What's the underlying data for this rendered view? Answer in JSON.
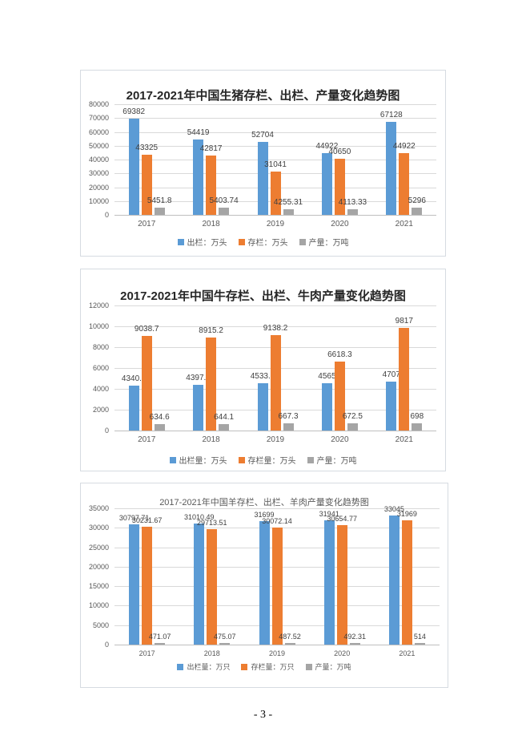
{
  "page": {
    "number_label": "- 3 -"
  },
  "chart_data": [
    {
      "type": "bar",
      "title": "2017-2021年中国生猪存栏、出栏、产量变化趋势图",
      "categories": [
        "2017",
        "2018",
        "2019",
        "2020",
        "2021"
      ],
      "series": [
        {
          "name": "出栏：万头",
          "color": "#5B9BD5",
          "values": [
            69382,
            54419,
            52704,
            44922,
            67128
          ]
        },
        {
          "name": "存栏：万头",
          "color": "#ED7D31",
          "values": [
            43325,
            42817,
            31041,
            40650,
            44922
          ]
        },
        {
          "name": "产量：万吨",
          "color": "#A5A5A5",
          "values": [
            5451.8,
            5403.74,
            4255.31,
            4113.33,
            5296
          ]
        }
      ],
      "ylim": [
        0,
        80000
      ],
      "ytick_step": 10000,
      "yticks": [
        "0",
        "10000",
        "20000",
        "30000",
        "40000",
        "50000",
        "60000",
        "70000",
        "80000"
      ],
      "grid": true,
      "legend_position": "bottom",
      "data_labels": true
    },
    {
      "type": "bar",
      "title": "2017-2021年中国牛存栏、出栏、牛肉产量变化趋势图",
      "categories": [
        "2017",
        "2018",
        "2019",
        "2020",
        "2021"
      ],
      "series": [
        {
          "name": "出栏量：万头",
          "color": "#5B9BD5",
          "values": [
            4340.3,
            4397.5,
            4533.9,
            4565,
            4707
          ]
        },
        {
          "name": "存栏量：万头",
          "color": "#ED7D31",
          "values": [
            9038.7,
            8915.2,
            9138.2,
            6618.3,
            9817
          ]
        },
        {
          "name": "产量：万吨",
          "color": "#A5A5A5",
          "values": [
            634.6,
            644.1,
            667.3,
            672.5,
            698
          ]
        }
      ],
      "ylim": [
        0,
        12000
      ],
      "ytick_step": 2000,
      "yticks": [
        "0",
        "2000",
        "4000",
        "6000",
        "8000",
        "10000",
        "12000"
      ],
      "grid": true,
      "legend_position": "bottom",
      "data_labels": true
    },
    {
      "type": "bar",
      "title": "2017-2021年中国羊存栏、出栏、羊肉产量变化趋势图",
      "categories": [
        "2017",
        "2018",
        "2019",
        "2020",
        "2021"
      ],
      "series": [
        {
          "name": "出栏量：万只",
          "color": "#5B9BD5",
          "values": [
            30797.71,
            31010.49,
            31699,
            31941,
            33045
          ]
        },
        {
          "name": "存栏量：万只",
          "color": "#ED7D31",
          "values": [
            30231.67,
            29713.51,
            30072.14,
            30654.77,
            31969
          ]
        },
        {
          "name": "产量：万吨",
          "color": "#A5A5A5",
          "values": [
            471.07,
            475.07,
            487.52,
            492.31,
            514
          ]
        }
      ],
      "ylim": [
        0,
        35000
      ],
      "ytick_step": 5000,
      "yticks": [
        "0",
        "5000",
        "10000",
        "15000",
        "20000",
        "25000",
        "30000",
        "35000"
      ],
      "grid": true,
      "legend_position": "bottom",
      "data_labels": true
    }
  ]
}
